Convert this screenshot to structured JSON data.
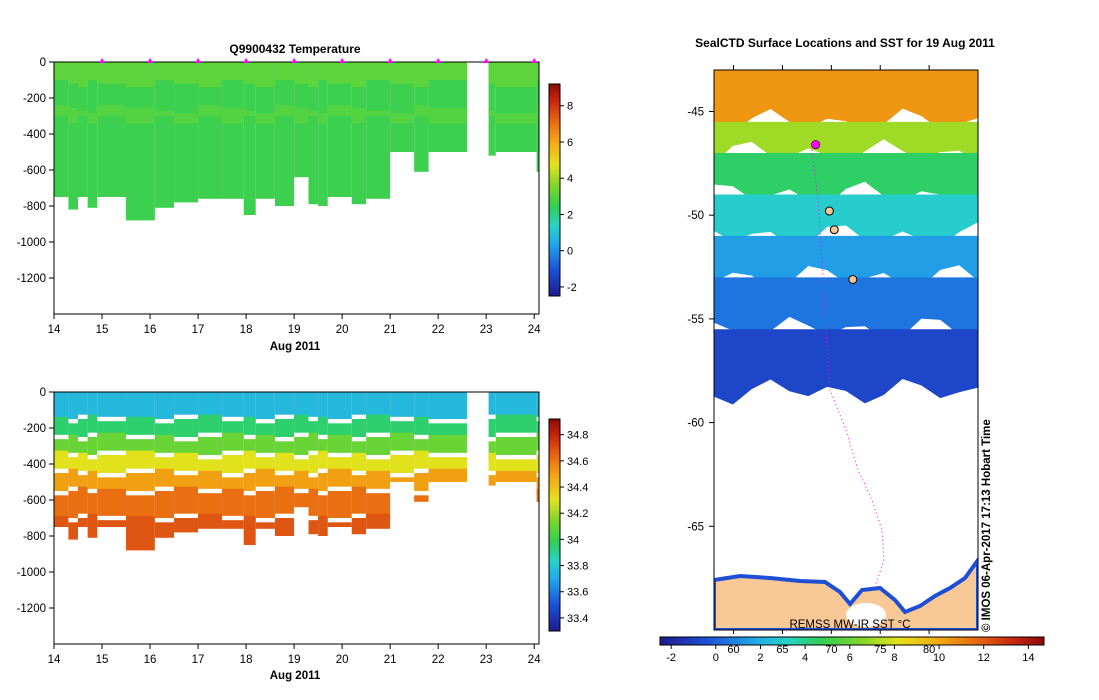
{
  "panels": {
    "temperature": {
      "title": "Q9900432  Temperature",
      "xlabel": "Aug 2011",
      "x_ticks": [
        "14",
        "15",
        "16",
        "17",
        "18",
        "19",
        "20",
        "21",
        "22",
        "23",
        "24"
      ],
      "y_ticks": [
        "0",
        "-200",
        "-400",
        "-600",
        "-800",
        "-1000",
        "-1200"
      ],
      "colorbar_ticks": [
        "8",
        "6",
        "4",
        "2",
        "0",
        "-2"
      ]
    },
    "salinity": {
      "xlabel": "Aug 2011",
      "x_ticks": [
        "14",
        "15",
        "16",
        "17",
        "18",
        "19",
        "20",
        "21",
        "22",
        "23",
        "24"
      ],
      "y_ticks": [
        "0",
        "-200",
        "-400",
        "-600",
        "-800",
        "-1000",
        "-1200"
      ],
      "colorbar_ticks": [
        "34.8",
        "34.6",
        "34.4",
        "34.2",
        "34",
        "33.8",
        "33.6",
        "33.4"
      ]
    },
    "map": {
      "title": "SealCTD Surface Locations and SST for 19 Aug 2011",
      "lat_ticks": [
        "-45",
        "-50",
        "-55",
        "-60",
        "-65"
      ],
      "lon_ticks": [
        "60",
        "65",
        "70",
        "75",
        "80"
      ],
      "sst_label": "REMSS MW-IR SST °C",
      "colorbar_ticks": [
        "-2",
        "0",
        "2",
        "4",
        "6",
        "8",
        "10",
        "12",
        "14"
      ],
      "credit": "©  IMOS 06-Apr-2017 17:13 Hobart Time"
    }
  },
  "colors": {
    "profile_marker": "#ff00ff",
    "land": "#f8c896",
    "track": "#ff00ff"
  },
  "chart_data": [
    {
      "type": "heatmap",
      "title": "Q9900432  Temperature",
      "xlabel": "Aug 2011",
      "ylabel": "",
      "xlim": [
        14,
        24.1
      ],
      "ylim": [
        -1400,
        0
      ],
      "colorbar": {
        "min": -2.5,
        "max": 9.2,
        "ticks": [
          8,
          6,
          4,
          2,
          0,
          -2
        ]
      },
      "columns": [
        {
          "x0": 14.0,
          "x1": 14.3,
          "bottom": -750,
          "value": 2.6
        },
        {
          "x0": 14.3,
          "x1": 14.5,
          "bottom": -820,
          "value": 2.6
        },
        {
          "x0": 14.5,
          "x1": 14.7,
          "bottom": -750,
          "value": 2.6
        },
        {
          "x0": 14.7,
          "x1": 14.9,
          "bottom": -810,
          "value": 2.6
        },
        {
          "x0": 14.9,
          "x1": 15.5,
          "bottom": -750,
          "value": 2.6
        },
        {
          "x0": 15.5,
          "x1": 16.1,
          "bottom": -880,
          "value": 2.6
        },
        {
          "x0": 16.1,
          "x1": 16.5,
          "bottom": -810,
          "value": 2.6
        },
        {
          "x0": 16.5,
          "x1": 17.0,
          "bottom": -780,
          "value": 2.6
        },
        {
          "x0": 17.0,
          "x1": 17.5,
          "bottom": -760,
          "value": 2.6
        },
        {
          "x0": 17.5,
          "x1": 17.95,
          "bottom": -760,
          "value": 2.6
        },
        {
          "x0": 17.95,
          "x1": 18.2,
          "bottom": -850,
          "value": 2.6
        },
        {
          "x0": 18.2,
          "x1": 18.6,
          "bottom": -760,
          "value": 2.6
        },
        {
          "x0": 18.6,
          "x1": 19.0,
          "bottom": -800,
          "value": 2.6
        },
        {
          "x0": 19.0,
          "x1": 19.3,
          "bottom": -640,
          "value": 2.6
        },
        {
          "x0": 19.3,
          "x1": 19.5,
          "bottom": -790,
          "value": 2.6
        },
        {
          "x0": 19.5,
          "x1": 19.7,
          "bottom": -800,
          "value": 2.6
        },
        {
          "x0": 19.7,
          "x1": 20.2,
          "bottom": -750,
          "value": 2.6
        },
        {
          "x0": 20.2,
          "x1": 20.5,
          "bottom": -790,
          "value": 2.6
        },
        {
          "x0": 20.5,
          "x1": 21.0,
          "bottom": -760,
          "value": 2.6
        },
        {
          "x0": 21.0,
          "x1": 21.5,
          "bottom": -500,
          "value": 2.6
        },
        {
          "x0": 21.5,
          "x1": 21.8,
          "bottom": -610,
          "value": 2.6
        },
        {
          "x0": 21.8,
          "x1": 22.6,
          "bottom": -500,
          "value": 2.6
        },
        {
          "x0": 23.05,
          "x1": 23.2,
          "bottom": -520,
          "value": 2.6
        },
        {
          "x0": 23.2,
          "x1": 24.05,
          "bottom": -500,
          "value": 2.6
        },
        {
          "x0": 24.05,
          "x1": 24.1,
          "bottom": -610,
          "value": 2.6
        }
      ],
      "profile_markers_x": [
        15,
        16,
        17,
        18,
        19,
        20,
        21,
        22,
        23,
        24
      ]
    },
    {
      "type": "heatmap",
      "title": "",
      "xlabel": "Aug 2011",
      "ylabel": "",
      "xlim": [
        14,
        24.1
      ],
      "ylim": [
        -1400,
        0
      ],
      "colorbar": {
        "min": 33.3,
        "max": 34.92,
        "ticks": [
          34.8,
          34.6,
          34.4,
          34.2,
          34.0,
          33.8,
          33.6,
          33.4
        ]
      },
      "depth_profile": [
        {
          "top": 0,
          "bottom": -150,
          "value": 33.75
        },
        {
          "top": -150,
          "bottom": -250,
          "value": 33.95
        },
        {
          "top": -250,
          "bottom": -350,
          "value": 34.1
        },
        {
          "top": -350,
          "bottom": -450,
          "value": 34.3
        },
        {
          "top": -450,
          "bottom": -550,
          "value": 34.5
        },
        {
          "top": -550,
          "bottom": -700,
          "value": 34.62
        },
        {
          "top": -700,
          "bottom": -900,
          "value": 34.68
        }
      ],
      "columns": [
        {
          "x0": 14.0,
          "x1": 14.3,
          "bottom": -750
        },
        {
          "x0": 14.3,
          "x1": 14.5,
          "bottom": -820
        },
        {
          "x0": 14.5,
          "x1": 14.7,
          "bottom": -750
        },
        {
          "x0": 14.7,
          "x1": 14.9,
          "bottom": -810
        },
        {
          "x0": 14.9,
          "x1": 15.5,
          "bottom": -750
        },
        {
          "x0": 15.5,
          "x1": 16.1,
          "bottom": -880
        },
        {
          "x0": 16.1,
          "x1": 16.5,
          "bottom": -810
        },
        {
          "x0": 16.5,
          "x1": 17.0,
          "bottom": -780
        },
        {
          "x0": 17.0,
          "x1": 17.5,
          "bottom": -760
        },
        {
          "x0": 17.5,
          "x1": 17.95,
          "bottom": -760
        },
        {
          "x0": 17.95,
          "x1": 18.2,
          "bottom": -850
        },
        {
          "x0": 18.2,
          "x1": 18.6,
          "bottom": -760
        },
        {
          "x0": 18.6,
          "x1": 19.0,
          "bottom": -800
        },
        {
          "x0": 19.0,
          "x1": 19.3,
          "bottom": -640
        },
        {
          "x0": 19.3,
          "x1": 19.5,
          "bottom": -790
        },
        {
          "x0": 19.5,
          "x1": 19.7,
          "bottom": -800
        },
        {
          "x0": 19.7,
          "x1": 20.2,
          "bottom": -750
        },
        {
          "x0": 20.2,
          "x1": 20.5,
          "bottom": -790
        },
        {
          "x0": 20.5,
          "x1": 21.0,
          "bottom": -760
        },
        {
          "x0": 21.0,
          "x1": 21.5,
          "bottom": -500
        },
        {
          "x0": 21.5,
          "x1": 21.8,
          "bottom": -610
        },
        {
          "x0": 21.8,
          "x1": 22.6,
          "bottom": -500
        },
        {
          "x0": 23.05,
          "x1": 23.2,
          "bottom": -520
        },
        {
          "x0": 23.2,
          "x1": 24.05,
          "bottom": -500
        },
        {
          "x0": 24.05,
          "x1": 24.1,
          "bottom": -610
        }
      ]
    },
    {
      "type": "heatmap",
      "title": "SealCTD Surface Locations and SST for 19 Aug 2011",
      "xlabel": "",
      "ylabel": "",
      "lon_range": [
        58.0,
        85.0
      ],
      "lat_range": [
        -70.0,
        -43.0
      ],
      "lon_ticks": [
        60,
        65,
        70,
        75,
        80
      ],
      "lat_ticks": [
        -45,
        -50,
        -55,
        -60,
        -65
      ],
      "colorbar": {
        "label": "REMSS MW-IR SST °C",
        "min": -2.5,
        "max": 14.7,
        "ticks": [
          -2,
          0,
          2,
          4,
          6,
          8,
          10,
          12,
          14
        ]
      },
      "sst_bands": [
        {
          "lat_top": -43.0,
          "lat_bottom": -45.5,
          "value": 10.5
        },
        {
          "lat_top": -45.5,
          "lat_bottom": -47.0,
          "value": 7.0
        },
        {
          "lat_top": -47.0,
          "lat_bottom": -49.0,
          "value": 4.5
        },
        {
          "lat_top": -49.0,
          "lat_bottom": -51.0,
          "value": 3.0
        },
        {
          "lat_top": -51.0,
          "lat_bottom": -53.0,
          "value": 1.5
        },
        {
          "lat_top": -53.0,
          "lat_bottom": -55.5,
          "value": 0.5
        },
        {
          "lat_top": -55.5,
          "lat_bottom": -58.5,
          "value": -0.8
        }
      ],
      "seal_surface_locations": [
        {
          "lon": 68.4,
          "lat": -46.6
        },
        {
          "lon": 69.8,
          "lat": -49.8
        },
        {
          "lon": 70.3,
          "lat": -50.7
        },
        {
          "lon": 72.2,
          "lat": -53.1
        }
      ]
    }
  ]
}
